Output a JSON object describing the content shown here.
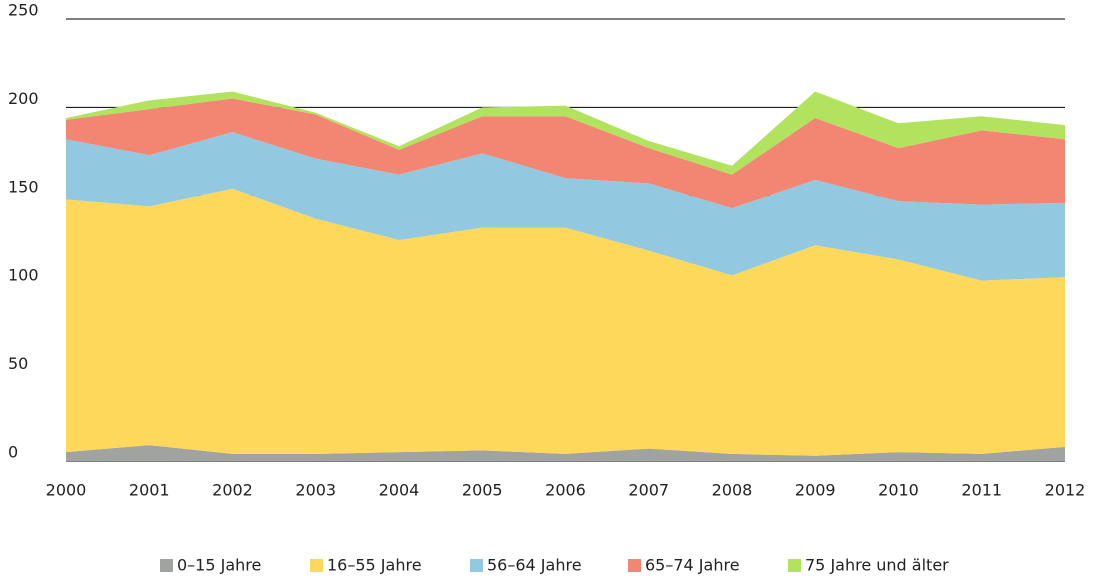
{
  "chart_data": {
    "type": "stacked-area",
    "categories": [
      "2000",
      "2001",
      "2002",
      "2003",
      "2004",
      "2005",
      "2006",
      "2007",
      "2008",
      "2009",
      "2010",
      "2011",
      "2012"
    ],
    "series": [
      {
        "name": "0–15 Jahre",
        "color": "#a0a39f",
        "values": [
          5,
          9,
          4,
          4,
          5,
          6,
          4,
          7,
          4,
          3,
          5,
          4,
          8
        ]
      },
      {
        "name": "16–55 Jahre",
        "color": "#fdd85a",
        "values": [
          143,
          135,
          150,
          133,
          120,
          126,
          128,
          112,
          101,
          119,
          109,
          98,
          96
        ]
      },
      {
        "name": "56–64 Jahre",
        "color": "#93c9e0",
        "values": [
          34,
          29,
          32,
          34,
          37,
          42,
          28,
          38,
          38,
          37,
          33,
          43,
          42
        ]
      },
      {
        "name": "65–74 Jahre",
        "color": "#f28672",
        "values": [
          11,
          26,
          19,
          25,
          14,
          21,
          35,
          20,
          19,
          35,
          30,
          42,
          36
        ]
      },
      {
        "name": "75 Jahre und älter",
        "color": "#b2e35f",
        "values": [
          1,
          5,
          4,
          1,
          2,
          5,
          6,
          4,
          5,
          15,
          14,
          8,
          8
        ]
      }
    ],
    "ylim": [
      0,
      250
    ],
    "yticks": [
      0,
      50,
      100,
      150,
      200,
      250
    ],
    "grid": true,
    "legend": "bottom"
  }
}
